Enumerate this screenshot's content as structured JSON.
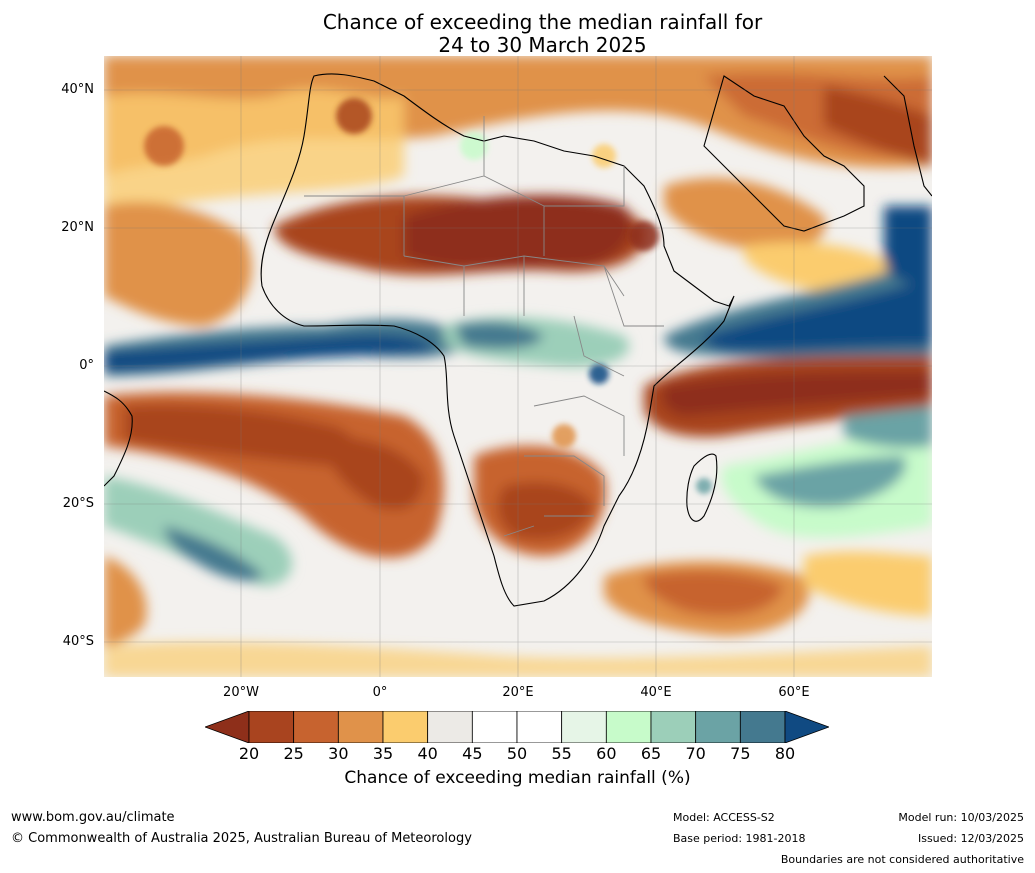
{
  "title": {
    "line1": "Chance of exceeding the median rainfall for",
    "line2": "24 to 30 March 2025"
  },
  "map": {
    "lat_labels": [
      "40°N",
      "20°N",
      "0°",
      "20°S",
      "40°S"
    ],
    "lon_labels": [
      "20°W",
      "0°",
      "20°E",
      "40°E",
      "60°E"
    ]
  },
  "colorbar": {
    "ticks": [
      "20",
      "25",
      "30",
      "35",
      "40",
      "45",
      "50",
      "55",
      "60",
      "65",
      "70",
      "75",
      "80"
    ],
    "colors": [
      "#8e2f1a",
      "#a9441f",
      "#c7632f",
      "#e0924a",
      "#fbcc6e",
      "#eceae6",
      "#ffffff",
      "#ffffff",
      "#e6f5e7",
      "#c7fbca",
      "#9ccfb9",
      "#6ba3a5",
      "#44798f",
      "#104a82"
    ],
    "label": "Chance of exceeding median rainfall (%)"
  },
  "footer": {
    "url": "www.bom.gov.au/climate",
    "copyright": "© Commonwealth of Australia 2025, Australian Bureau of Meteorology",
    "model": "Model: ACCESS-S2",
    "base_period": "Base period: 1981-2018",
    "model_run": "Model run: 10/03/2025",
    "issued": "Issued: 12/03/2025",
    "disclaimer": "Boundaries are not considered authoritative"
  }
}
